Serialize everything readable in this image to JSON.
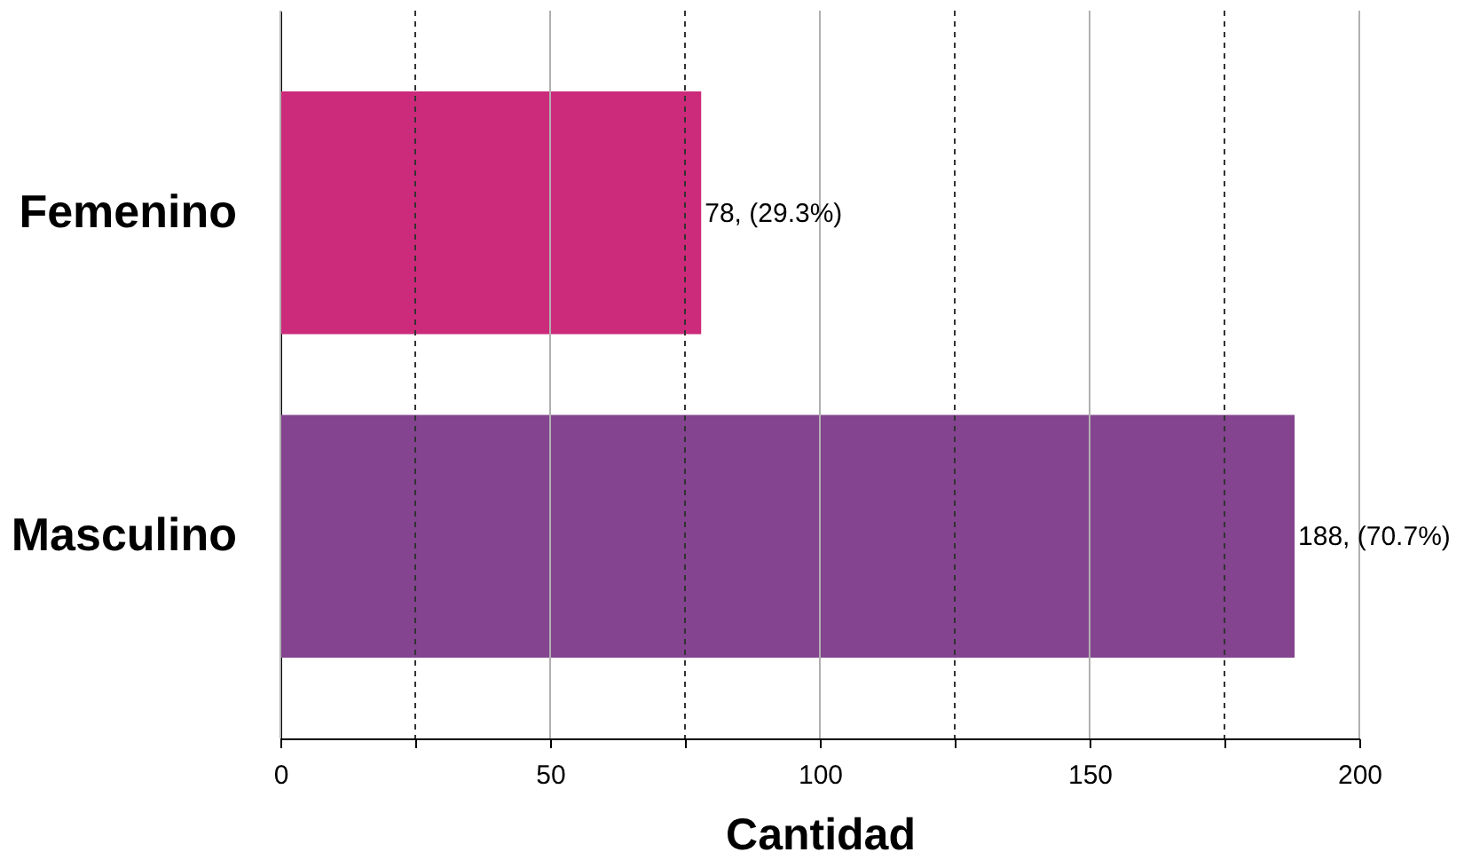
{
  "chart_data": {
    "type": "bar",
    "orientation": "horizontal",
    "xlabel": "Cantidad",
    "categories": [
      "Femenino",
      "Masculino"
    ],
    "values": [
      78,
      188
    ],
    "colors": [
      "#cc2a7a",
      "#84448f"
    ],
    "value_labels": [
      "78, (29.3%)",
      "188, (70.7%)"
    ],
    "xlim": [
      0,
      200
    ],
    "xticks": [
      0,
      {
        "value": 25,
        "label": null
      },
      50,
      {
        "value": 75,
        "label": null
      },
      100,
      {
        "value": 125,
        "label": null
      },
      150,
      {
        "value": 175,
        "label": null
      },
      200
    ],
    "grid": "x"
  }
}
